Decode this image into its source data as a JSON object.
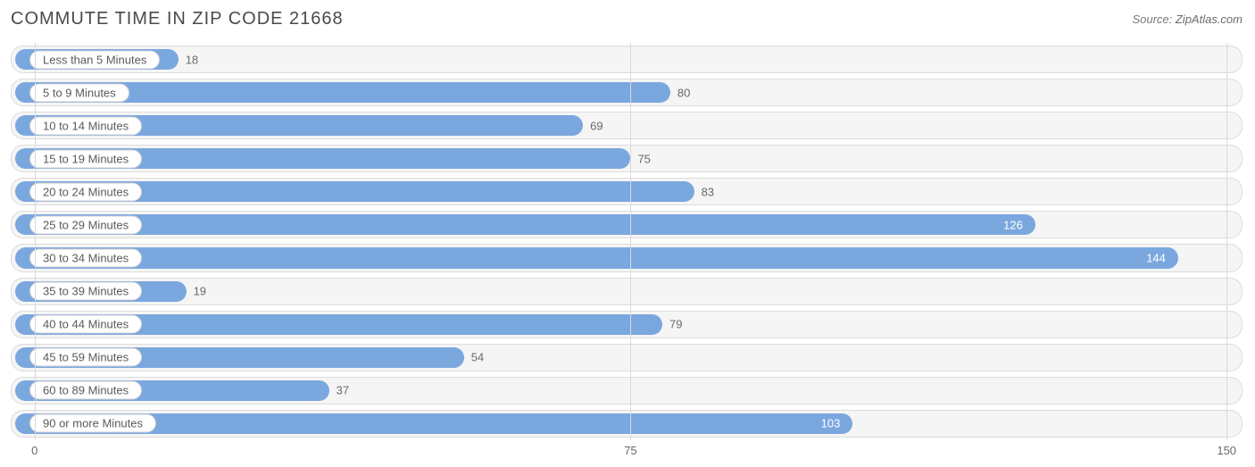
{
  "title": "COMMUTE TIME IN ZIP CODE 21668",
  "source_prefix": "Source: ",
  "source_name": "ZipAtlas.com",
  "chart": {
    "type": "bar-horizontal",
    "xmin": -3,
    "xmax": 152,
    "bar_color": "#7ba7df",
    "track_bg": "#f5f5f5",
    "track_border": "#dcdcdc",
    "grid_color": "#d9d9d9",
    "value_inside_color": "#ffffff",
    "value_outside_color": "#6a6a6a",
    "label_text_color": "#5a5a5a",
    "title_color": "#4a4a4a",
    "categories": [
      {
        "label": "Less than 5 Minutes",
        "value": 18
      },
      {
        "label": "5 to 9 Minutes",
        "value": 80
      },
      {
        "label": "10 to 14 Minutes",
        "value": 69
      },
      {
        "label": "15 to 19 Minutes",
        "value": 75
      },
      {
        "label": "20 to 24 Minutes",
        "value": 83
      },
      {
        "label": "25 to 29 Minutes",
        "value": 126
      },
      {
        "label": "30 to 34 Minutes",
        "value": 144
      },
      {
        "label": "35 to 39 Minutes",
        "value": 19
      },
      {
        "label": "40 to 44 Minutes",
        "value": 79
      },
      {
        "label": "45 to 59 Minutes",
        "value": 54
      },
      {
        "label": "60 to 89 Minutes",
        "value": 37
      },
      {
        "label": "90 or more Minutes",
        "value": 103
      }
    ],
    "xticks": [
      {
        "value": 0,
        "label": "0"
      },
      {
        "value": 75,
        "label": "75"
      },
      {
        "value": 150,
        "label": "150"
      }
    ]
  }
}
